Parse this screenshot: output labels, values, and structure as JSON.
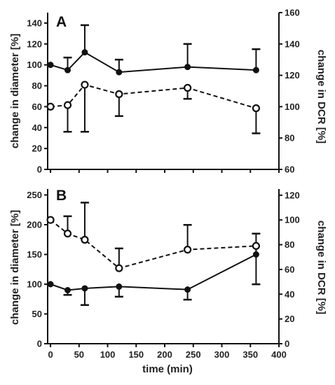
{
  "chart_data": [
    {
      "type": "line",
      "panel_label": "A",
      "xlabel": "",
      "ylabel_left": "change in diameter [%]",
      "ylabel_right": "change in DCR [%]",
      "xlim": [
        -5,
        400
      ],
      "ylim_left": [
        0,
        150
      ],
      "ylim_right": [
        60,
        160
      ],
      "x_ticks": [
        0,
        50,
        100,
        150,
        200,
        250,
        300,
        350,
        400
      ],
      "y_ticks_left": [
        0,
        20,
        40,
        60,
        80,
        100,
        120,
        140
      ],
      "y_ticks_right": [
        60,
        80,
        100,
        120,
        140,
        160
      ],
      "series": [
        {
          "axis": "left",
          "style": "solid",
          "marker": "filled-circle",
          "x": [
            0,
            30,
            60,
            120,
            240,
            360
          ],
          "y": [
            100,
            95,
            112,
            93,
            98,
            95
          ],
          "err_plus": [
            0,
            12,
            26,
            12,
            22,
            20
          ],
          "err_minus": [
            0,
            0,
            0,
            0,
            0,
            0
          ]
        },
        {
          "axis": "right",
          "style": "dashed",
          "marker": "open-circle",
          "x": [
            0,
            30,
            60,
            120,
            240,
            360
          ],
          "y": [
            100,
            101,
            114,
            108,
            112,
            99
          ],
          "err_plus": [
            0,
            0,
            0,
            0,
            0,
            0
          ],
          "err_minus": [
            0,
            17,
            30,
            14,
            7,
            16
          ]
        }
      ]
    },
    {
      "type": "line",
      "panel_label": "B",
      "xlabel": "time (min)",
      "ylabel_left": "change in diameter [%]",
      "ylabel_right": "change in DCR [%]",
      "xlim": [
        -5,
        400
      ],
      "ylim_left": [
        0,
        260
      ],
      "ylim_right": [
        0,
        125
      ],
      "x_ticks": [
        0,
        50,
        100,
        150,
        200,
        250,
        300,
        350,
        400
      ],
      "y_ticks_left": [
        0,
        50,
        100,
        150,
        200,
        250
      ],
      "y_ticks_right": [
        0,
        20,
        40,
        60,
        80,
        100,
        120
      ],
      "series": [
        {
          "axis": "left",
          "style": "solid",
          "marker": "filled-circle",
          "x": [
            0,
            30,
            60,
            120,
            240,
            360
          ],
          "y": [
            100,
            90,
            93,
            96,
            91,
            150
          ],
          "err_plus": [
            0,
            0,
            0,
            0,
            0,
            35
          ],
          "err_minus": [
            0,
            8,
            28,
            17,
            17,
            0
          ]
        },
        {
          "axis": "right",
          "style": "dashed",
          "marker": "open-circle",
          "x": [
            0,
            30,
            60,
            120,
            240,
            360
          ],
          "y": [
            100,
            89,
            84,
            61,
            76,
            79
          ],
          "err_plus": [
            0,
            14,
            30,
            16,
            20,
            0
          ],
          "err_minus": [
            0,
            0,
            0,
            0,
            0,
            31
          ]
        }
      ]
    }
  ]
}
